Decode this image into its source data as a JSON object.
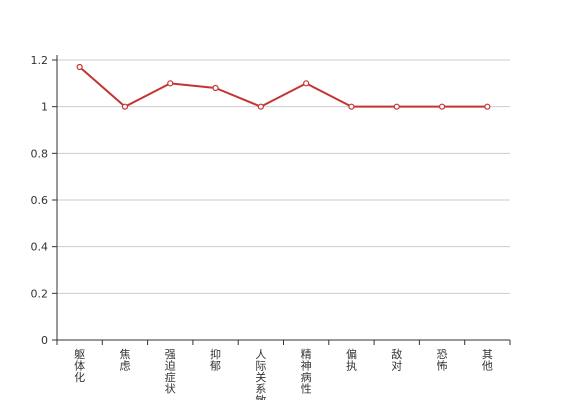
{
  "chart_data": {
    "type": "line",
    "categories": [
      "躯体化",
      "焦虑",
      "强迫症状",
      "抑郁",
      "人际关系敏感",
      "精神病性",
      "偏执",
      "敌对",
      "恐怖",
      "其他"
    ],
    "series": [
      {
        "values": [
          1.17,
          1.0,
          1.1,
          1.08,
          1.0,
          1.1,
          1.0,
          1.0,
          1.0,
          1.0
        ]
      }
    ],
    "yticks": [
      "0",
      "0.2",
      "0.4",
      "0.6",
      "0.8",
      "1",
      "1.2"
    ],
    "ylim": [
      0,
      1.2
    ],
    "grid": true,
    "colors": {
      "line": "#c23531",
      "grid": "#cccccc",
      "axis": "#333333"
    }
  }
}
